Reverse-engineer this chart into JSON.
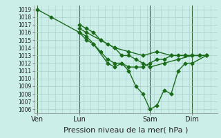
{
  "xlabel": "Pression niveau de la mer( hPa )",
  "bg_color": "#cceee8",
  "grid_color": "#aacccc",
  "line_color": "#1a6b1a",
  "ylim": [
    1005.5,
    1019.5
  ],
  "xlim": [
    -0.2,
    12.8
  ],
  "yticks": [
    1006,
    1007,
    1008,
    1009,
    1010,
    1011,
    1012,
    1013,
    1014,
    1015,
    1016,
    1017,
    1018,
    1019
  ],
  "xtick_labels": [
    "Ven",
    "Lun",
    "Sam",
    "Dim"
  ],
  "xtick_positions": [
    0,
    3,
    8,
    11
  ],
  "lines": [
    {
      "x": [
        0,
        1,
        3,
        3.5,
        4,
        5,
        5.5,
        6,
        6.5,
        7,
        7.5,
        8,
        8.5,
        9,
        9.5,
        10,
        10.5,
        11,
        12
      ],
      "y": [
        1019,
        1018,
        1016,
        1015,
        1014.5,
        1012,
        1011.5,
        1012,
        1011,
        1009,
        1008,
        1006,
        1006.5,
        1008.5,
        1008,
        1011,
        1012,
        1012,
        1013
      ]
    },
    {
      "x": [
        3,
        3.5,
        4.5,
        5.5,
        6.5,
        7.5,
        8.5,
        9.5,
        10.5,
        11.5,
        12
      ],
      "y": [
        1016.5,
        1016,
        1015,
        1014,
        1013.5,
        1013,
        1013.5,
        1013,
        1013,
        1013,
        1013
      ]
    },
    {
      "x": [
        3,
        3.5,
        4,
        4.5,
        5,
        5.5,
        6,
        6.5,
        7,
        7.5,
        8,
        9,
        10,
        11
      ],
      "y": [
        1017,
        1016.5,
        1016,
        1015,
        1014.5,
        1014,
        1013,
        1013,
        1012.5,
        1012,
        1011.5,
        1012,
        1012.5,
        1013
      ]
    },
    {
      "x": [
        3,
        3.5,
        4,
        4.5,
        5,
        5.5,
        6,
        6.5,
        7,
        7.5,
        8,
        8.5,
        9,
        9.5,
        10,
        10.5,
        11,
        11.5,
        12
      ],
      "y": [
        1016,
        1015.5,
        1014.5,
        1013.5,
        1012.5,
        1012,
        1012,
        1011.5,
        1011.5,
        1011.5,
        1012,
        1012.5,
        1012.5,
        1013,
        1013,
        1013,
        1013,
        1013,
        1013
      ]
    }
  ],
  "vlines": [
    0,
    3,
    8,
    11
  ],
  "marker": "D",
  "markersize": 2.5,
  "linewidth": 1.0,
  "ytick_fontsize": 5.5,
  "xtick_fontsize": 7,
  "xlabel_fontsize": 8
}
